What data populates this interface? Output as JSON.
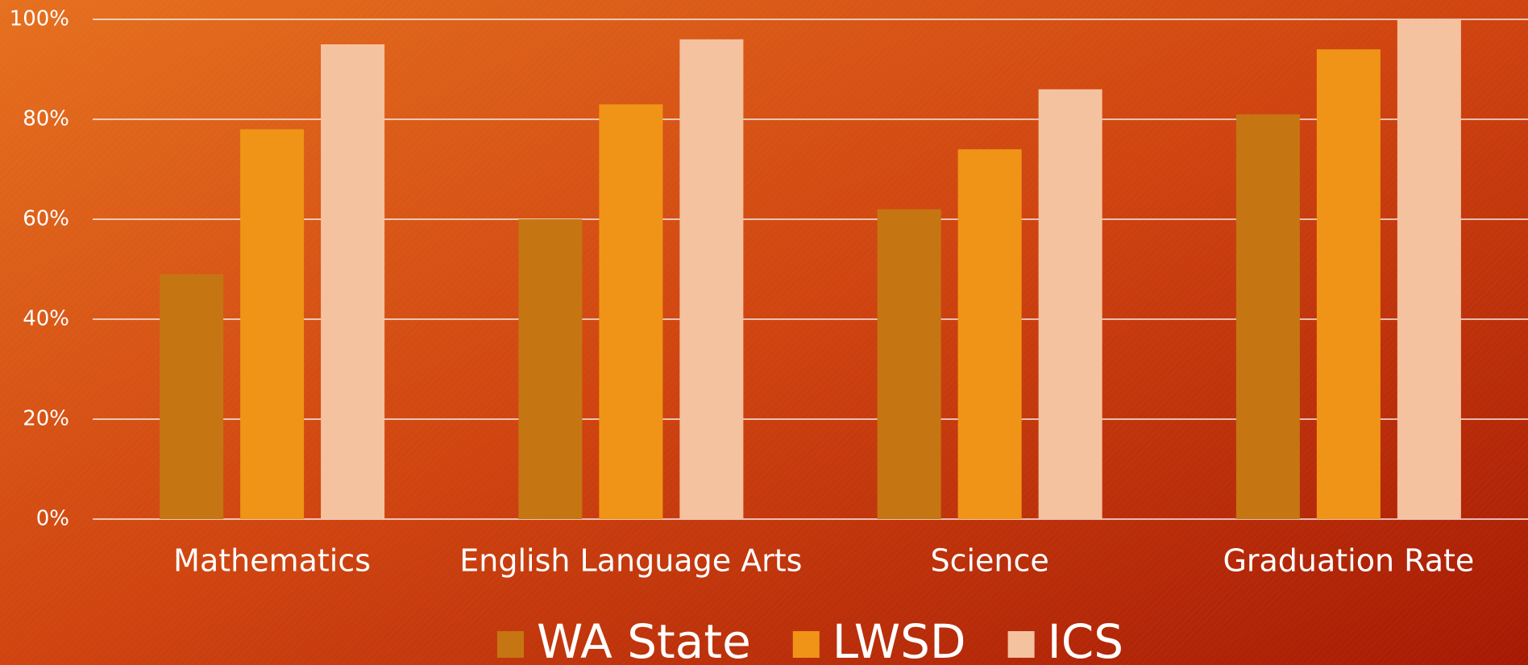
{
  "chart_data": {
    "type": "bar",
    "categories": [
      "Mathematics",
      "English Language Arts",
      "Science",
      "Graduation Rate"
    ],
    "series": [
      {
        "name": "WA State",
        "color": "#c57612",
        "values": [
          49,
          60,
          62,
          81
        ]
      },
      {
        "name": "LWSD",
        "color": "#f09417",
        "values": [
          78,
          83,
          74,
          94
        ]
      },
      {
        "name": "ICS",
        "color": "#f5c2a0",
        "values": [
          95,
          96,
          86,
          100
        ]
      }
    ],
    "ylim": [
      0,
      100
    ],
    "yticks": [
      {
        "value": 0,
        "label": "0%"
      },
      {
        "value": 20,
        "label": "20%"
      },
      {
        "value": 40,
        "label": "40%"
      },
      {
        "value": 60,
        "label": "60%"
      },
      {
        "value": 80,
        "label": "80%"
      },
      {
        "value": 100,
        "label": "100%"
      }
    ],
    "grid": true,
    "legend": "bottom"
  }
}
